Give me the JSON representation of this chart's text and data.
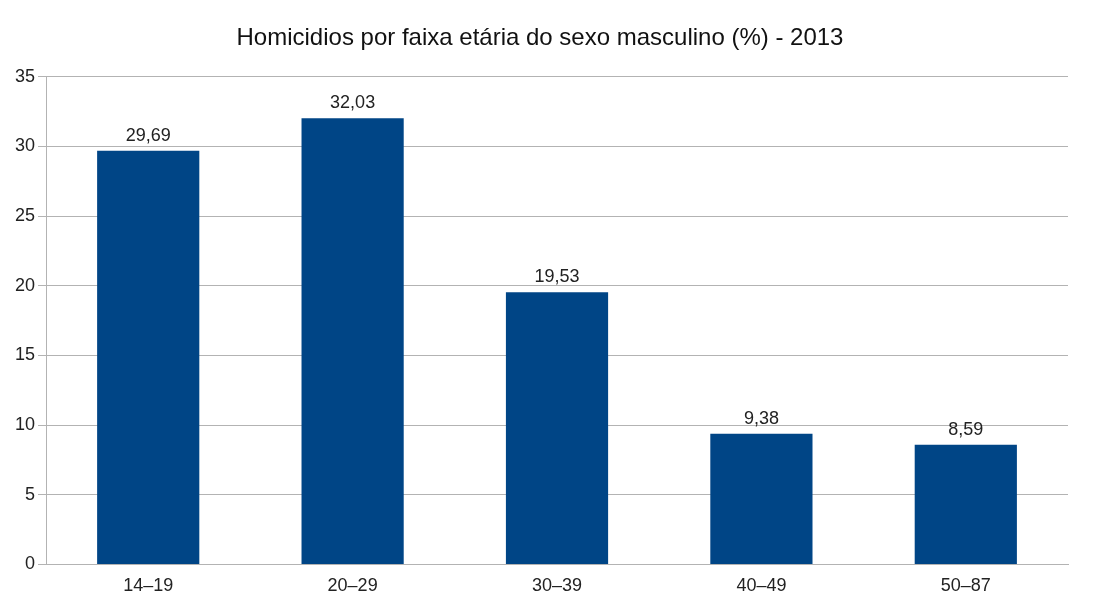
{
  "chart_data": {
    "type": "bar",
    "title": "Homicidios por faixa etária do sexo masculino (%) - 2013",
    "categories": [
      "14–19",
      "20–29",
      "30–39",
      "40–49",
      "50–87"
    ],
    "values": [
      29.69,
      32.03,
      19.53,
      9.38,
      8.59
    ],
    "value_labels": [
      "29,69",
      "32,03",
      "19,53",
      "9,38",
      "8,59"
    ],
    "color": "#004586",
    "ylim": [
      0,
      35
    ],
    "yticks": [
      0,
      5,
      10,
      15,
      20,
      25,
      30,
      35
    ],
    "grid": "y",
    "legend": false
  }
}
